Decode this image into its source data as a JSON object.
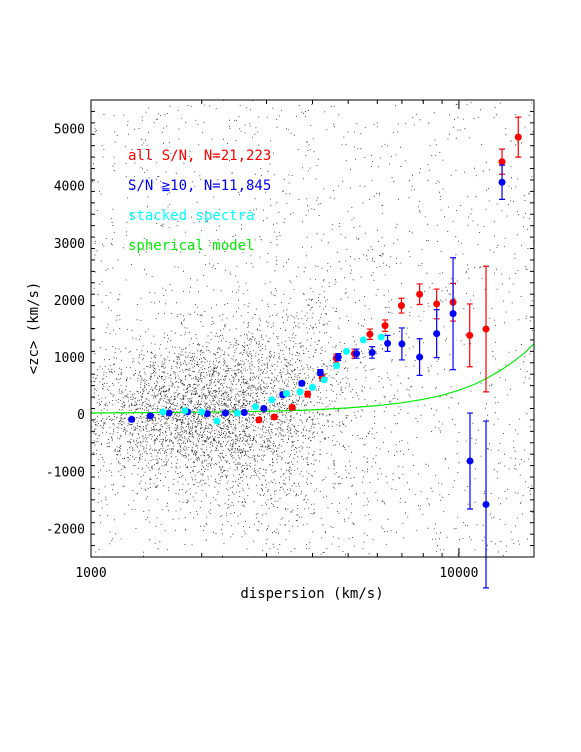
{
  "chart_data": {
    "type": "scatter",
    "title": "",
    "xlabel": "dispersion (km/s)",
    "ylabel": "<zc> (km/s)",
    "x_scale": "log",
    "xlim": [
      1000,
      16000
    ],
    "ylim": [
      -2500,
      5500
    ],
    "x_ticks": [
      1000,
      10000
    ],
    "y_ticks": [
      -2000,
      -1000,
      0,
      1000,
      2000,
      3000,
      4000,
      5000
    ],
    "grid": false,
    "legend_position": "top-left",
    "legend": [
      {
        "label": "all S/N, N=21,223",
        "color": "#ff0000"
      },
      {
        "label": "S/N ≧10, N=11,845",
        "color": "#0000ff"
      },
      {
        "label": "stacked spectra",
        "color": "#00ffff"
      },
      {
        "label": "spherical model",
        "color": "#00ee00"
      }
    ],
    "background_scatter": {
      "color": "#000000",
      "note_count_shown_as_dense_cloud": true
    },
    "series": [
      {
        "name": "all S/N, N=21,223",
        "color": "#ff0000",
        "points": [
          {
            "x": 2860,
            "y": -100,
            "err": 40
          },
          {
            "x": 3150,
            "y": -50,
            "err": 40
          },
          {
            "x": 3520,
            "y": 120,
            "err": 40
          },
          {
            "x": 3880,
            "y": 350,
            "err": 50
          },
          {
            "x": 4250,
            "y": 640,
            "err": 60
          },
          {
            "x": 4640,
            "y": 980,
            "err": 70
          },
          {
            "x": 5200,
            "y": 1060,
            "err": 80
          },
          {
            "x": 5730,
            "y": 1400,
            "err": 90
          },
          {
            "x": 6300,
            "y": 1550,
            "err": 100
          },
          {
            "x": 6980,
            "y": 1900,
            "err": 130
          },
          {
            "x": 7820,
            "y": 2100,
            "err": 180
          },
          {
            "x": 8700,
            "y": 1930,
            "err": 260
          },
          {
            "x": 9640,
            "y": 1960,
            "err": 330
          },
          {
            "x": 10700,
            "y": 1380,
            "err": 550
          },
          {
            "x": 11850,
            "y": 1490,
            "err": 1100
          },
          {
            "x": 13100,
            "y": 4420,
            "err": 220
          },
          {
            "x": 14500,
            "y": 4850,
            "err": 350
          }
        ]
      },
      {
        "name": "S/N ≧10, N=11,845",
        "color": "#0000ff",
        "points": [
          {
            "x": 1290,
            "y": -90,
            "err": 30
          },
          {
            "x": 1450,
            "y": -30,
            "err": 30
          },
          {
            "x": 1630,
            "y": 20,
            "err": 30
          },
          {
            "x": 1830,
            "y": 40,
            "err": 30
          },
          {
            "x": 2070,
            "y": 10,
            "err": 30
          },
          {
            "x": 2320,
            "y": 20,
            "err": 30
          },
          {
            "x": 2610,
            "y": 30,
            "err": 30
          },
          {
            "x": 2950,
            "y": 100,
            "err": 30
          },
          {
            "x": 3320,
            "y": 340,
            "err": 40
          },
          {
            "x": 3740,
            "y": 540,
            "err": 40
          },
          {
            "x": 4200,
            "y": 730,
            "err": 50
          },
          {
            "x": 4700,
            "y": 1000,
            "err": 60
          },
          {
            "x": 5270,
            "y": 1060,
            "err": 80
          },
          {
            "x": 5810,
            "y": 1080,
            "err": 100
          },
          {
            "x": 6400,
            "y": 1240,
            "err": 140
          },
          {
            "x": 7000,
            "y": 1230,
            "err": 280
          },
          {
            "x": 7820,
            "y": 1000,
            "err": 320
          },
          {
            "x": 8700,
            "y": 1410,
            "err": 420
          },
          {
            "x": 9640,
            "y": 1760,
            "err": 980
          },
          {
            "x": 10720,
            "y": -820,
            "err": 840
          },
          {
            "x": 11850,
            "y": -1580,
            "err": 1460
          },
          {
            "x": 13100,
            "y": 4060,
            "err": 300
          }
        ]
      },
      {
        "name": "stacked spectra",
        "color": "#00ffff",
        "points": [
          {
            "x": 1570,
            "y": 40
          },
          {
            "x": 1800,
            "y": 60
          },
          {
            "x": 2000,
            "y": 40
          },
          {
            "x": 2200,
            "y": -120
          },
          {
            "x": 2500,
            "y": 20
          },
          {
            "x": 2800,
            "y": 130
          },
          {
            "x": 3100,
            "y": 250
          },
          {
            "x": 3400,
            "y": 360
          },
          {
            "x": 3700,
            "y": 390
          },
          {
            "x": 4000,
            "y": 470
          },
          {
            "x": 4300,
            "y": 600
          },
          {
            "x": 4650,
            "y": 850
          },
          {
            "x": 4950,
            "y": 1100
          },
          {
            "x": 5500,
            "y": 1300
          },
          {
            "x": 6150,
            "y": 1350
          }
        ]
      }
    ],
    "model_curve": {
      "name": "spherical model",
      "color": "#00ee00",
      "x": [
        1000,
        2000,
        3000,
        4000,
        5000,
        6000,
        7000,
        8000,
        9000,
        10000,
        11000,
        12000,
        13000,
        14000,
        15000,
        16000
      ],
      "y": [
        20,
        35,
        50,
        75,
        110,
        150,
        200,
        260,
        330,
        420,
        520,
        640,
        770,
        910,
        1060,
        1230
      ]
    }
  }
}
